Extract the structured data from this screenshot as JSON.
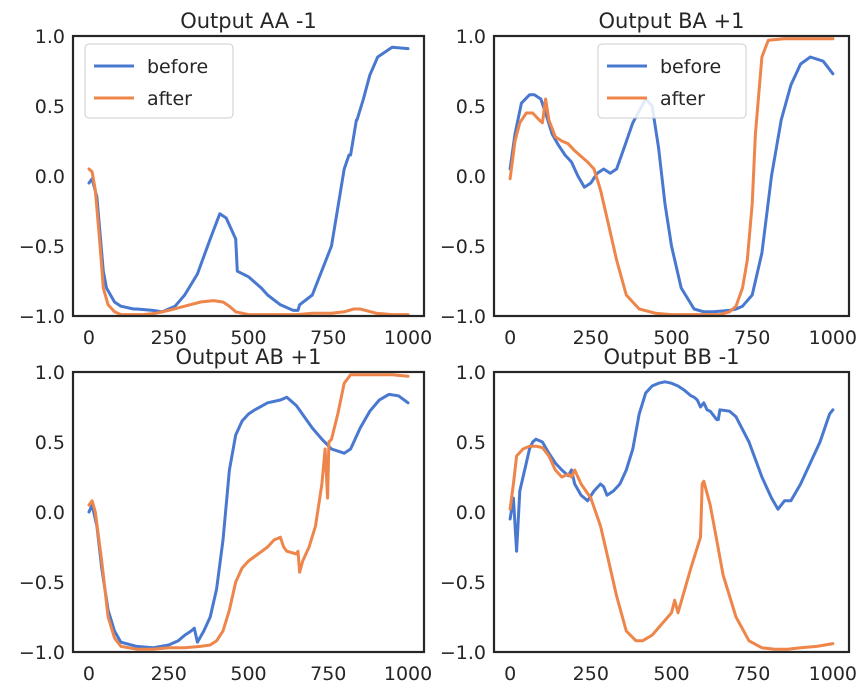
{
  "chart_data": [
    {
      "type": "line",
      "title": "Output AA -1",
      "xlim": [
        -50,
        1050
      ],
      "ylim": [
        -1.0,
        1.0
      ],
      "xticks": [
        0,
        250,
        500,
        750,
        1000
      ],
      "yticks": [
        -1.0,
        -0.5,
        0.0,
        0.5,
        1.0
      ],
      "grid": false,
      "legend": "top-left",
      "series": [
        {
          "name": "before",
          "color": "#4878d0",
          "x": [
            0,
            10,
            25,
            45,
            55,
            80,
            100,
            140,
            150,
            200,
            230,
            270,
            300,
            340,
            380,
            410,
            430,
            460,
            465,
            500,
            540,
            560,
            600,
            640,
            655,
            660,
            700,
            760,
            800,
            815,
            820,
            838,
            840,
            860,
            880,
            905,
            950,
            1000
          ],
          "y": [
            -0.05,
            -0.02,
            -0.15,
            -0.68,
            -0.8,
            -0.9,
            -0.93,
            -0.95,
            -0.95,
            -0.96,
            -0.97,
            -0.93,
            -0.85,
            -0.7,
            -0.45,
            -0.27,
            -0.3,
            -0.45,
            -0.68,
            -0.72,
            -0.8,
            -0.85,
            -0.92,
            -0.96,
            -0.96,
            -0.92,
            -0.85,
            -0.5,
            0.05,
            0.15,
            0.15,
            0.4,
            0.4,
            0.55,
            0.72,
            0.85,
            0.92,
            0.91
          ]
        },
        {
          "name": "after",
          "color": "#ee854a",
          "x": [
            0,
            10,
            20,
            35,
            45,
            60,
            80,
            100,
            130,
            170,
            210,
            250,
            300,
            350,
            390,
            420,
            440,
            460,
            500,
            550,
            600,
            650,
            700,
            760,
            800,
            830,
            850,
            900,
            950,
            1000
          ],
          "y": [
            0.05,
            0.03,
            -0.1,
            -0.5,
            -0.8,
            -0.92,
            -0.97,
            -0.99,
            -0.99,
            -0.99,
            -0.98,
            -0.96,
            -0.93,
            -0.9,
            -0.89,
            -0.9,
            -0.93,
            -0.97,
            -0.99,
            -0.99,
            -0.99,
            -0.99,
            -0.98,
            -0.98,
            -0.97,
            -0.95,
            -0.95,
            -0.98,
            -0.99,
            -0.99
          ]
        }
      ]
    },
    {
      "type": "line",
      "title": "Output BA +1",
      "xlim": [
        -50,
        1050
      ],
      "ylim": [
        -1.0,
        1.0
      ],
      "xticks": [
        0,
        250,
        500,
        750,
        1000
      ],
      "yticks": [
        -1.0,
        -0.5,
        0.0,
        0.5,
        1.0
      ],
      "grid": false,
      "legend": "top-center",
      "series": [
        {
          "name": "before",
          "color": "#4878d0",
          "x": [
            0,
            15,
            35,
            60,
            75,
            95,
            110,
            130,
            150,
            170,
            190,
            210,
            230,
            250,
            270,
            290,
            310,
            330,
            350,
            380,
            420,
            440,
            460,
            480,
            500,
            530,
            570,
            600,
            630,
            680,
            700,
            720,
            750,
            780,
            810,
            840,
            870,
            900,
            930,
            970,
            1000
          ],
          "y": [
            0.05,
            0.3,
            0.52,
            0.58,
            0.58,
            0.55,
            0.45,
            0.3,
            0.22,
            0.15,
            0.1,
            0.0,
            -0.08,
            -0.05,
            0.02,
            0.05,
            0.02,
            0.05,
            0.18,
            0.38,
            0.55,
            0.5,
            0.2,
            -0.2,
            -0.5,
            -0.8,
            -0.95,
            -0.97,
            -0.97,
            -0.96,
            -0.95,
            -0.93,
            -0.85,
            -0.55,
            0.0,
            0.4,
            0.65,
            0.8,
            0.85,
            0.82,
            0.73
          ]
        },
        {
          "name": "after",
          "color": "#ee854a",
          "x": [
            0,
            15,
            30,
            50,
            70,
            90,
            100,
            110,
            120,
            140,
            160,
            180,
            200,
            220,
            240,
            260,
            280,
            300,
            330,
            360,
            400,
            450,
            500,
            550,
            600,
            650,
            680,
            700,
            720,
            735,
            750,
            760,
            780,
            800,
            850,
            900,
            950,
            1000
          ],
          "y": [
            -0.02,
            0.25,
            0.38,
            0.45,
            0.45,
            0.4,
            0.38,
            0.55,
            0.4,
            0.28,
            0.25,
            0.23,
            0.18,
            0.14,
            0.1,
            0.05,
            -0.1,
            -0.3,
            -0.6,
            -0.85,
            -0.95,
            -0.98,
            -0.99,
            -0.99,
            -0.99,
            -0.99,
            -0.97,
            -0.93,
            -0.8,
            -0.6,
            -0.2,
            0.3,
            0.85,
            0.97,
            0.98,
            0.98,
            0.98,
            0.98
          ]
        }
      ]
    },
    {
      "type": "line",
      "title": "Output AB +1",
      "xlim": [
        -50,
        1050
      ],
      "ylim": [
        -1.0,
        1.0
      ],
      "xticks": [
        0,
        250,
        500,
        750,
        1000
      ],
      "yticks": [
        -1.0,
        -0.5,
        0.0,
        0.5,
        1.0
      ],
      "grid": false,
      "legend": "none",
      "series": [
        {
          "name": "before",
          "color": "#4878d0",
          "x": [
            0,
            10,
            25,
            40,
            60,
            80,
            100,
            150,
            200,
            250,
            280,
            300,
            320,
            330,
            340,
            360,
            380,
            400,
            420,
            440,
            460,
            480,
            500,
            520,
            560,
            600,
            620,
            650,
            700,
            730,
            760,
            800,
            820,
            850,
            880,
            910,
            940,
            970,
            1000
          ],
          "y": [
            0.0,
            0.05,
            -0.1,
            -0.4,
            -0.7,
            -0.85,
            -0.93,
            -0.96,
            -0.97,
            -0.95,
            -0.92,
            -0.88,
            -0.85,
            -0.83,
            -0.93,
            -0.85,
            -0.75,
            -0.55,
            -0.2,
            0.3,
            0.55,
            0.65,
            0.7,
            0.73,
            0.78,
            0.8,
            0.82,
            0.76,
            0.6,
            0.52,
            0.45,
            0.42,
            0.45,
            0.6,
            0.72,
            0.8,
            0.84,
            0.83,
            0.78
          ]
        },
        {
          "name": "after",
          "color": "#ee854a",
          "x": [
            0,
            10,
            20,
            40,
            60,
            80,
            100,
            150,
            200,
            250,
            300,
            350,
            380,
            400,
            420,
            440,
            460,
            480,
            500,
            530,
            560,
            580,
            600,
            610,
            620,
            650,
            655,
            660,
            670,
            690,
            710,
            730,
            740,
            748,
            752,
            760,
            780,
            800,
            820,
            850,
            900,
            950,
            1000
          ],
          "y": [
            0.05,
            0.08,
            0.0,
            -0.35,
            -0.75,
            -0.9,
            -0.96,
            -0.98,
            -0.98,
            -0.97,
            -0.97,
            -0.96,
            -0.95,
            -0.92,
            -0.85,
            -0.7,
            -0.5,
            -0.4,
            -0.35,
            -0.3,
            -0.25,
            -0.2,
            -0.18,
            -0.25,
            -0.28,
            -0.3,
            -0.28,
            -0.43,
            -0.35,
            -0.25,
            -0.1,
            0.2,
            0.45,
            0.1,
            0.5,
            0.52,
            0.7,
            0.92,
            0.98,
            0.98,
            0.98,
            0.98,
            0.97
          ]
        }
      ]
    },
    {
      "type": "line",
      "title": "Output BB -1",
      "xlim": [
        -50,
        1050
      ],
      "ylim": [
        -1.0,
        1.0
      ],
      "xticks": [
        0,
        250,
        500,
        750,
        1000
      ],
      "yticks": [
        -1.0,
        -0.5,
        0.0,
        0.5,
        1.0
      ],
      "grid": false,
      "legend": "none",
      "series": [
        {
          "name": "before",
          "color": "#4878d0",
          "x": [
            0,
            10,
            20,
            30,
            50,
            60,
            70,
            80,
            100,
            120,
            140,
            160,
            180,
            190,
            200,
            220,
            240,
            260,
            280,
            290,
            300,
            320,
            340,
            360,
            380,
            400,
            420,
            440,
            460,
            480,
            500,
            520,
            540,
            560,
            570,
            580,
            590,
            600,
            610,
            620,
            640,
            645,
            650,
            680,
            700,
            740,
            780,
            810,
            830,
            850,
            870,
            900,
            930,
            960,
            990,
            1000
          ],
          "y": [
            -0.05,
            0.1,
            -0.28,
            0.15,
            0.35,
            0.45,
            0.5,
            0.52,
            0.5,
            0.42,
            0.35,
            0.3,
            0.26,
            0.3,
            0.2,
            0.12,
            0.08,
            0.15,
            0.2,
            0.18,
            0.12,
            0.15,
            0.2,
            0.3,
            0.45,
            0.7,
            0.85,
            0.9,
            0.92,
            0.93,
            0.92,
            0.9,
            0.87,
            0.83,
            0.82,
            0.8,
            0.75,
            0.78,
            0.73,
            0.72,
            0.66,
            0.66,
            0.73,
            0.72,
            0.68,
            0.5,
            0.25,
            0.1,
            0.02,
            0.08,
            0.08,
            0.2,
            0.35,
            0.5,
            0.7,
            0.73
          ]
        },
        {
          "name": "after",
          "color": "#ee854a",
          "x": [
            0,
            10,
            20,
            40,
            60,
            80,
            100,
            120,
            140,
            160,
            180,
            190,
            200,
            220,
            250,
            280,
            300,
            330,
            360,
            390,
            410,
            440,
            470,
            500,
            510,
            520,
            560,
            590,
            595,
            600,
            620,
            640,
            660,
            700,
            740,
            780,
            820,
            860,
            900,
            950,
            1000
          ],
          "y": [
            0.02,
            0.2,
            0.4,
            0.45,
            0.47,
            0.47,
            0.46,
            0.4,
            0.3,
            0.25,
            0.27,
            0.25,
            0.3,
            0.2,
            0.1,
            -0.1,
            -0.3,
            -0.6,
            -0.85,
            -0.92,
            -0.92,
            -0.88,
            -0.8,
            -0.72,
            -0.63,
            -0.72,
            -0.4,
            -0.18,
            0.2,
            0.22,
            0.05,
            -0.2,
            -0.45,
            -0.75,
            -0.92,
            -0.97,
            -0.98,
            -0.98,
            -0.97,
            -0.96,
            -0.94
          ]
        }
      ]
    }
  ]
}
